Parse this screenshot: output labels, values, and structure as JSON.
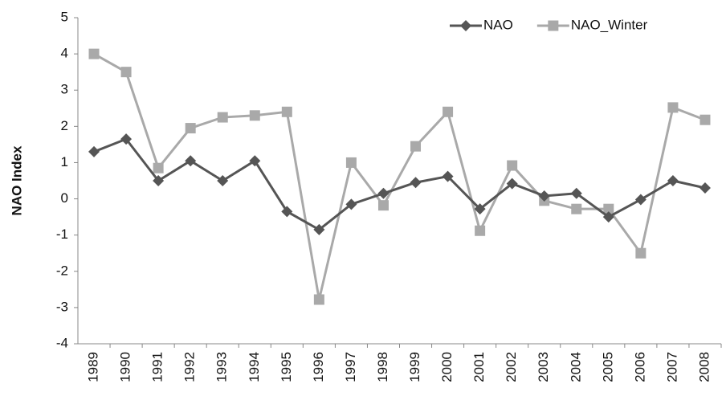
{
  "chart_data": {
    "type": "line",
    "y_label": "NAO Index",
    "categories": [
      "1989",
      "1990",
      "1991",
      "1992",
      "1993",
      "1994",
      "1995",
      "1996",
      "1997",
      "1998",
      "1999",
      "2000",
      "2001",
      "2002",
      "2003",
      "2004",
      "2005",
      "2006",
      "2007",
      "2008"
    ],
    "series": [
      {
        "name": "NAO",
        "color": "#555555",
        "marker": "diamond",
        "values": [
          1.3,
          1.65,
          0.5,
          1.05,
          0.5,
          1.05,
          -0.35,
          -0.85,
          -0.15,
          0.15,
          0.45,
          0.62,
          -0.28,
          0.42,
          0.08,
          0.15,
          -0.5,
          -0.02,
          0.5,
          0.3
        ]
      },
      {
        "name": "NAO_Winter",
        "color": "#a9a9a9",
        "marker": "square",
        "values": [
          4.0,
          3.5,
          0.85,
          1.95,
          2.25,
          2.3,
          2.4,
          -2.78,
          1.0,
          -0.18,
          1.45,
          2.4,
          -0.88,
          0.92,
          -0.05,
          -0.28,
          -0.28,
          -1.5,
          2.52,
          2.18
        ]
      }
    ],
    "ylim": [
      -4,
      5
    ],
    "yticks": [
      -4,
      -3,
      -2,
      -1,
      0,
      1,
      2,
      3,
      4,
      5
    ],
    "grid": false,
    "legend": "upper right"
  }
}
